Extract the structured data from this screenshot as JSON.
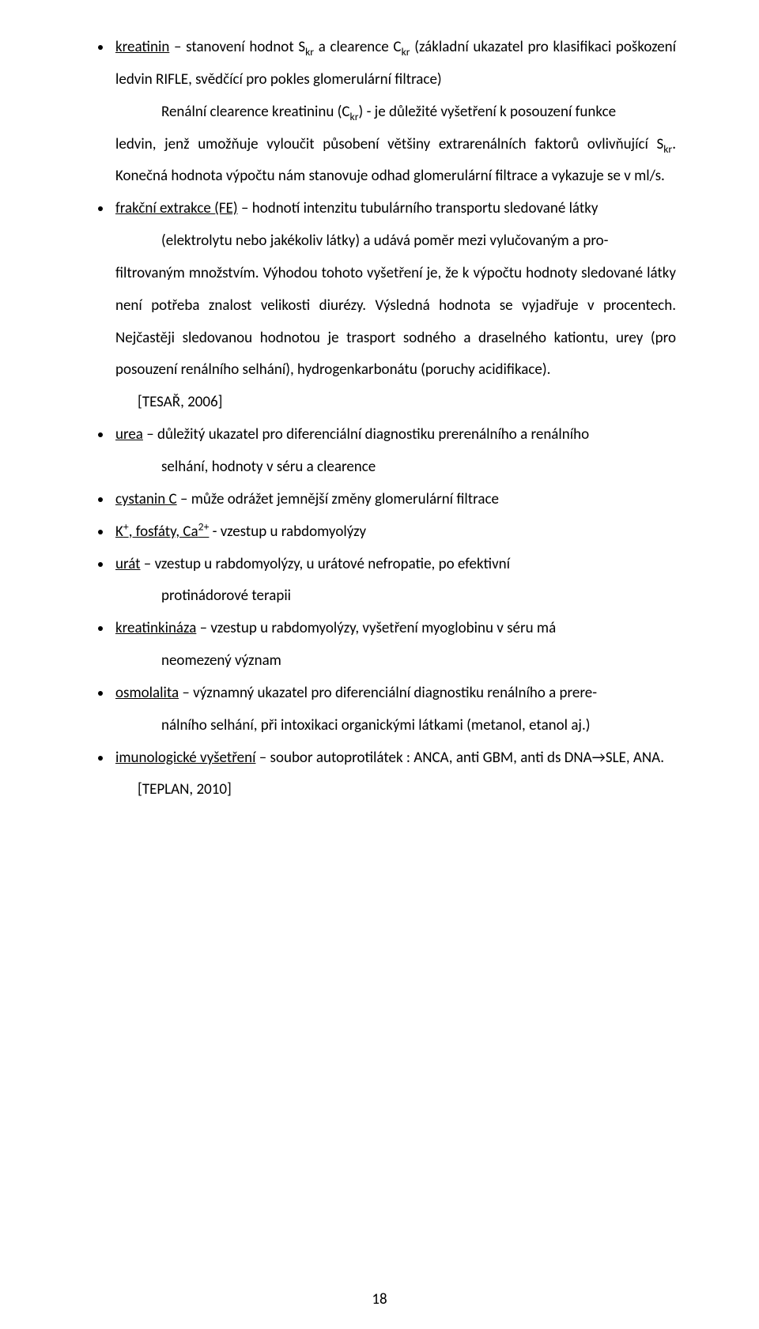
{
  "items": [
    {
      "lead_html": "<span class=\"und\">kreatinin</span> – stanovení hodnot S<sub>kr</sub> a clearence C<sub>kr</sub> (základní ukazatel pro klasifikaci poškození ledvin RIFLE, svědčící pro pokles glomerulární filtrace)",
      "sub1_html": "Renální clearence kreatininu (C<sub>kr</sub>) - je důležité vyšetření k posouzení funkce",
      "cont_html": "ledvin, jenž umožňuje vyloučit působení většiny extrarenálních faktorů ovlivňující S<sub>kr</sub>. Konečná hodnota výpočtu nám stanovuje odhad glomerulární filtrace a vykazuje se v ml/s."
    },
    {
      "lead_html": "<span class=\"und\">frakční extrakce (FE)</span> – hodnotí intenzitu tubulárního transportu sledované látky",
      "sub1_html": "(elektrolytu nebo jakékoliv látky) a udává poměr mezi vylučovaným a pro-",
      "cont_html": "filtrovaným množstvím. Výhodou tohoto vyšetření je, že k výpočtu hodnoty sledované látky není potřeba znalost velikosti diurézy. Výsledná hodnota se vyjadřuje v procentech. Nejčastěji sledovanou hodnotou je trasport sodného a draselného kationtu, urey (pro posouzení renálního selhání), hydrogenkarbonátu (poruchy acidifikace).",
      "sub2_html": "[TESAŘ, 2006]"
    },
    {
      "lead_html": "<span class=\"und\">urea</span> – důležitý ukazatel pro diferenciální diagnostiku prerenálního a renálního",
      "sub1_html": "selhání, hodnoty v séru a clearence"
    },
    {
      "lead_html": "<span class=\"und\">cystanin C</span> – může odrážet jemnější změny glomerulární filtrace"
    },
    {
      "lead_html": "<span class=\"und\">K<sup>+</sup>, fosfáty, Ca<sup>2+</sup></span> - vzestup u rabdomyolýzy"
    },
    {
      "lead_html": "<span class=\"und\">urát</span> – vzestup u rabdomyolýzy, u urátové nefropatie, po efektivní",
      "sub1_html": "protinádorové terapii"
    },
    {
      "lead_html": "<span class=\"und\">kreatinkináza</span> – vzestup u rabdomyolýzy, vyšetření myoglobinu v séru má",
      "sub1_html": "neomezený význam"
    },
    {
      "lead_html": "<span class=\"und\">osmolalita</span> – významný ukazatel pro diferenciální diagnostiku renálního a prere-",
      "sub1_html": "nálního selhání, při intoxikaci organickými látkami (metanol, etanol aj.)"
    },
    {
      "lead_html": "<span class=\"und\">imunologické vyšetření</span> – soubor autoprotilátek : ANCA, anti GBM, anti ds DNA→SLE, ANA.",
      "sub2_html": "[TEPLAN, 2010]"
    }
  ],
  "page_number": "18"
}
